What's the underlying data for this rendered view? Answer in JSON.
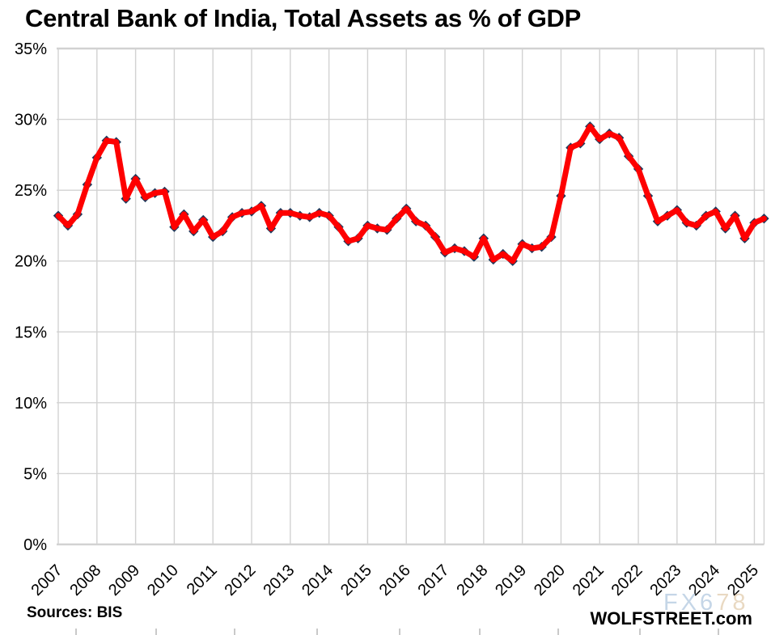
{
  "page": {
    "title": "Central Bank of India, Total Assets as % of GDP"
  },
  "footer": {
    "sources": "Sources: BIS",
    "brand": "WOLFSTREET.com"
  },
  "watermark": {
    "part1": "FX6",
    "part2": "78",
    "color_primary": "#b7cce2",
    "color_secondary": "#e4d0b4"
  },
  "chart_data": {
    "type": "line",
    "title": "Central Bank of India, Total Assets as % of GDP",
    "xlabel": "",
    "ylabel": "",
    "frequency": "quarterly",
    "x_start": "2007Q1",
    "x_end": "2025Q2",
    "ylim": [
      0,
      35
    ],
    "grid": true,
    "grid_color": "#d2d2d2",
    "y_ticks": [
      {
        "value": 0,
        "label": "0%"
      },
      {
        "value": 5,
        "label": "5%"
      },
      {
        "value": 10,
        "label": "10%"
      },
      {
        "value": 15,
        "label": "15%"
      },
      {
        "value": 20,
        "label": "20%"
      },
      {
        "value": 25,
        "label": "25%"
      },
      {
        "value": 30,
        "label": "30%"
      },
      {
        "value": 35,
        "label": "35%"
      }
    ],
    "x_ticks": [
      {
        "index": 0,
        "label": "2007"
      },
      {
        "index": 4,
        "label": "2008"
      },
      {
        "index": 8,
        "label": "2009"
      },
      {
        "index": 12,
        "label": "2010"
      },
      {
        "index": 16,
        "label": "2011"
      },
      {
        "index": 20,
        "label": "2012"
      },
      {
        "index": 24,
        "label": "2013"
      },
      {
        "index": 28,
        "label": "2014"
      },
      {
        "index": 32,
        "label": "2015"
      },
      {
        "index": 36,
        "label": "2016"
      },
      {
        "index": 40,
        "label": "2017"
      },
      {
        "index": 44,
        "label": "2018"
      },
      {
        "index": 48,
        "label": "2019"
      },
      {
        "index": 52,
        "label": "2020"
      },
      {
        "index": 56,
        "label": "2021"
      },
      {
        "index": 60,
        "label": "2022"
      },
      {
        "index": 64,
        "label": "2023"
      },
      {
        "index": 68,
        "label": "2024"
      },
      {
        "index": 72,
        "label": "2025"
      }
    ],
    "series": [
      {
        "name": "Central Bank of India total assets as % of GDP",
        "color": "#fe0000",
        "marker_color": "#1f3a5c",
        "marker_shape": "diamond",
        "values": [
          23.2,
          22.5,
          23.3,
          25.4,
          27.3,
          28.5,
          28.4,
          24.4,
          25.8,
          24.5,
          24.8,
          24.9,
          22.4,
          23.3,
          22.1,
          22.9,
          21.7,
          22.1,
          23.1,
          23.4,
          23.5,
          23.9,
          22.3,
          23.4,
          23.4,
          23.2,
          23.1,
          23.4,
          23.2,
          22.4,
          21.4,
          21.6,
          22.5,
          22.3,
          22.2,
          23.0,
          23.7,
          22.8,
          22.5,
          21.7,
          20.6,
          20.9,
          20.7,
          20.3,
          21.6,
          20.1,
          20.5,
          20.0,
          21.2,
          20.9,
          21.0,
          21.7,
          24.6,
          28.0,
          28.3,
          29.5,
          28.6,
          29.0,
          28.7,
          27.4,
          26.5,
          24.6,
          22.8,
          23.2,
          23.6,
          22.7,
          22.5,
          23.2,
          23.5,
          22.3,
          23.2,
          21.6,
          22.7,
          23.0
        ]
      }
    ],
    "bottom_edge_marks": [
      94,
      193,
      290,
      392,
      494,
      593,
      690,
      791,
      888
    ],
    "legend": null,
    "source_note": "Sources: BIS",
    "branding": "WOLFSTREET.com"
  }
}
